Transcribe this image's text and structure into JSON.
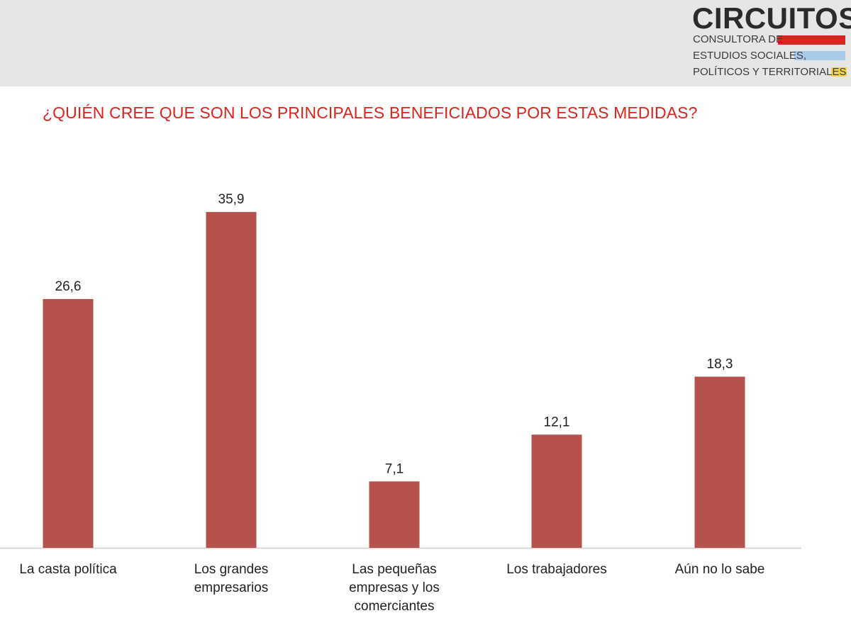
{
  "logo": {
    "name": "CIRCUITOS",
    "line1": "CONSULTORA DE",
    "line2": "ESTUDIOS SOCIALES,",
    "line3": "POLÍTICOS Y TERRITORIALES"
  },
  "colors": {
    "bar": "#b5524e",
    "title": "#d9251c",
    "axis": "#cfcfcf"
  },
  "chart_data": {
    "type": "bar",
    "title": "¿QUIÉN CREE QUE SON LOS PRINCIPALES BENEFICIADOS POR ESTAS MEDIDAS?",
    "categories": [
      [
        "La casta política"
      ],
      [
        "Los grandes",
        "empresarios"
      ],
      [
        "Las pequeñas",
        "empresas y los",
        "comerciantes"
      ],
      [
        "Los trabajadores"
      ],
      [
        "Aún no lo sabe"
      ]
    ],
    "values": [
      26.6,
      35.9,
      7.1,
      12.1,
      18.3
    ],
    "value_labels": [
      "26,6",
      "35,9",
      "7,1",
      "12,1",
      "18,3"
    ],
    "xlabel": "",
    "ylabel": "",
    "ylim": [
      0,
      40
    ],
    "grid": false,
    "legend": "none"
  }
}
